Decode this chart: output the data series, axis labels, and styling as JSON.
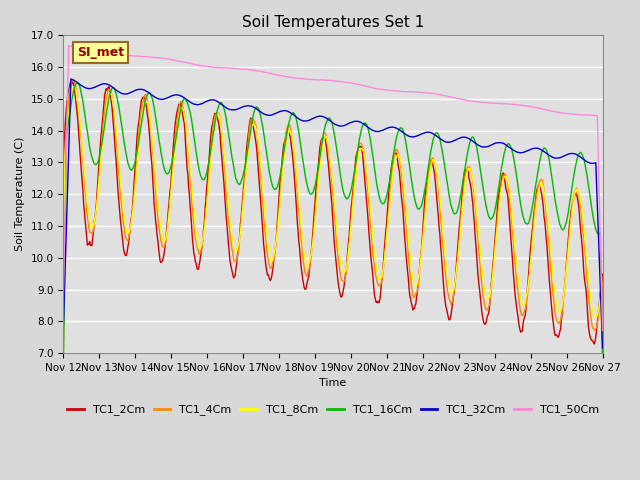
{
  "title": "Soil Temperatures Set 1",
  "xlabel": "Time",
  "ylabel": "Soil Temperature (C)",
  "ylim": [
    7.0,
    17.0
  ],
  "yticks": [
    7.0,
    8.0,
    9.0,
    10.0,
    11.0,
    12.0,
    13.0,
    14.0,
    15.0,
    16.0,
    17.0
  ],
  "xtick_labels": [
    "Nov 12",
    "Nov 13",
    "Nov 14",
    "Nov 15",
    "Nov 16",
    "Nov 17",
    "Nov 18",
    "Nov 19",
    "Nov 20",
    "Nov 21",
    "Nov 22",
    "Nov 23",
    "Nov 24",
    "Nov 25",
    "Nov 26",
    "Nov 27"
  ],
  "series_names": [
    "TC1_2Cm",
    "TC1_4Cm",
    "TC1_8Cm",
    "TC1_16Cm",
    "TC1_32Cm",
    "TC1_50Cm"
  ],
  "colors": [
    "#cc0000",
    "#ff8800",
    "#ffff00",
    "#00bb00",
    "#0000cc",
    "#ff88dd"
  ],
  "background_color": "#e8e8e8",
  "plot_bg_color": "#e0e0e0",
  "annotation_text": "SI_met",
  "annotation_bg": "#ffff99",
  "annotation_border": "#996633",
  "n_points": 720,
  "title_fontsize": 11,
  "label_fontsize": 8,
  "tick_fontsize": 7.5,
  "legend_fontsize": 8
}
